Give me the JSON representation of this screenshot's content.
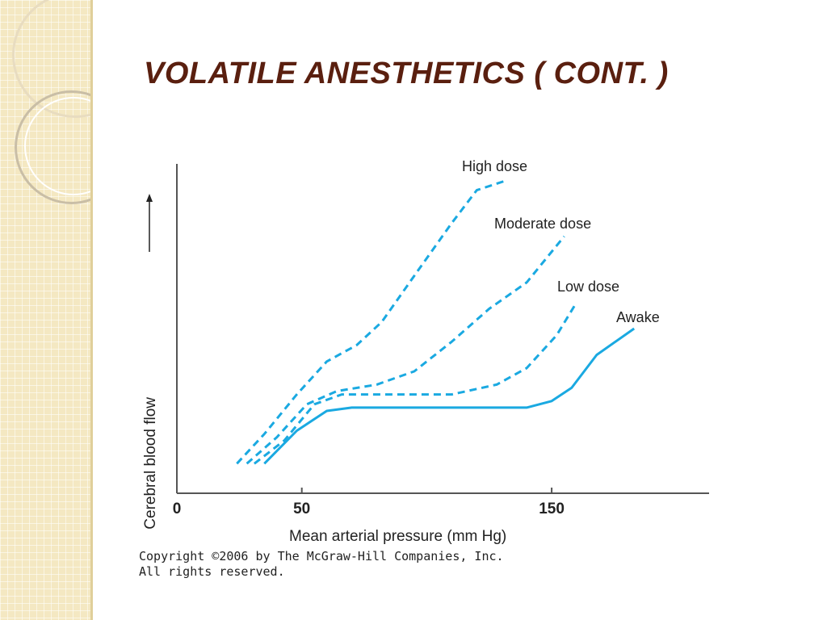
{
  "slide": {
    "title": "VOLATILE ANESTHETICS ( CONT. )",
    "copyright_lines": [
      "Copyright ©2006 by The McGraw-Hill Companies, Inc.",
      "All rights reserved."
    ]
  },
  "colors": {
    "title": "#5a1f0f",
    "series": "#1aa9e1",
    "axis": "#555555"
  },
  "chart_data": {
    "type": "line",
    "xlabel": "Mean arterial pressure (mm Hg)",
    "ylabel": "Cerebral blood flow",
    "xlim": [
      0,
      213
    ],
    "ylim": [
      0,
      100
    ],
    "x_ticks": [
      0,
      50,
      150
    ],
    "y_ticks": [],
    "grid": false,
    "legend": "labels at line ends",
    "series": [
      {
        "name": "High dose",
        "style": "dashed",
        "points": [
          [
            24,
            9
          ],
          [
            35,
            18
          ],
          [
            48,
            30
          ],
          [
            60,
            40
          ],
          [
            72,
            45
          ],
          [
            82,
            52
          ],
          [
            95,
            66
          ],
          [
            110,
            82
          ],
          [
            120,
            92
          ],
          [
            132,
            95
          ]
        ]
      },
      {
        "name": "Moderate dose",
        "style": "dashed",
        "points": [
          [
            28,
            9
          ],
          [
            40,
            17
          ],
          [
            52,
            27
          ],
          [
            64,
            31
          ],
          [
            80,
            33
          ],
          [
            95,
            37
          ],
          [
            110,
            46
          ],
          [
            125,
            56
          ],
          [
            140,
            64
          ],
          [
            155,
            78
          ]
        ]
      },
      {
        "name": "Low dose",
        "style": "dashed",
        "points": [
          [
            31,
            9
          ],
          [
            43,
            16
          ],
          [
            55,
            27
          ],
          [
            66,
            30
          ],
          [
            80,
            30
          ],
          [
            110,
            30
          ],
          [
            128,
            33
          ],
          [
            140,
            38
          ],
          [
            152,
            48
          ],
          [
            160,
            58
          ]
        ]
      },
      {
        "name": "Awake",
        "style": "solid",
        "points": [
          [
            35,
            9
          ],
          [
            48,
            19
          ],
          [
            60,
            25
          ],
          [
            70,
            26
          ],
          [
            100,
            26
          ],
          [
            140,
            26
          ],
          [
            150,
            28
          ],
          [
            158,
            32
          ],
          [
            168,
            42
          ],
          [
            183,
            50
          ]
        ]
      }
    ]
  }
}
